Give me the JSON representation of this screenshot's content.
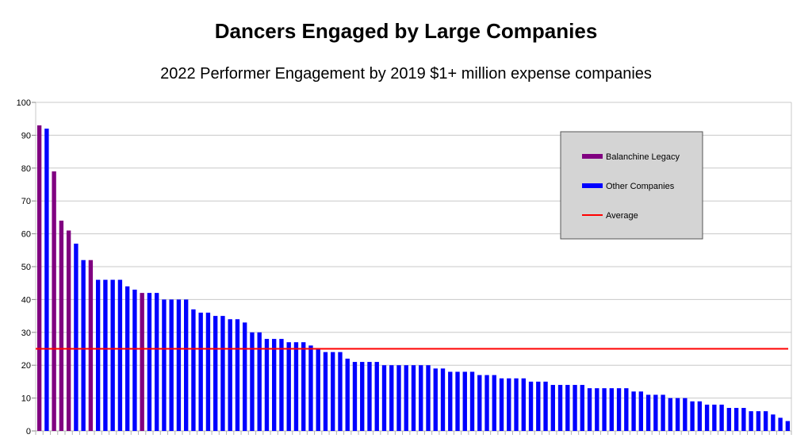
{
  "chart_data": {
    "type": "bar",
    "title": "Dancers Engaged by Large Companies",
    "subtitle": "2022 Performer Engagement by 2019 $1+ million expense companies",
    "xlabel": "",
    "ylabel": "",
    "ylim": [
      0,
      100
    ],
    "yticks": [
      0,
      10,
      20,
      30,
      40,
      50,
      60,
      70,
      80,
      90,
      100
    ],
    "grid": true,
    "legend_position": "top-right",
    "colors": {
      "balanchine": "#800080",
      "other": "#0000ff",
      "average": "#ff0000",
      "legend_bg": "#d4d4d4",
      "grid": "#c8c8c8"
    },
    "legend": [
      {
        "label": "Balanchine Legacy",
        "kind": "bar",
        "color": "#800080"
      },
      {
        "label": "Other Companies",
        "kind": "bar",
        "color": "#0000ff"
      },
      {
        "label": "Average",
        "kind": "line",
        "color": "#ff0000"
      }
    ],
    "average": 25,
    "series": [
      {
        "name": "Balanchine Legacy",
        "color": "#800080",
        "values": [
          93,
          null,
          79,
          64,
          61,
          null,
          null,
          52,
          null,
          null,
          null,
          null,
          null,
          null,
          42,
          null,
          null,
          null,
          null,
          null,
          null,
          null,
          null,
          null,
          null,
          null,
          null,
          null,
          null,
          null,
          null,
          null,
          null,
          null,
          null,
          null,
          null,
          null,
          null,
          null,
          null,
          null,
          null,
          null,
          null,
          null,
          null,
          null,
          null,
          null,
          null,
          null,
          null,
          null,
          null,
          null,
          null,
          null,
          null,
          null,
          null,
          null,
          null,
          null,
          null,
          null,
          null,
          null,
          null,
          null,
          null,
          null,
          null,
          null,
          null,
          null,
          null,
          null,
          null,
          null,
          null,
          null,
          null,
          null,
          null,
          null,
          null,
          null,
          null,
          null,
          null,
          null,
          null,
          null,
          null,
          null,
          null,
          null,
          null,
          null,
          null,
          null,
          null
        ]
      },
      {
        "name": "Other Companies",
        "color": "#0000ff",
        "values": [
          null,
          92,
          null,
          null,
          null,
          57,
          52,
          null,
          46,
          46,
          46,
          46,
          44,
          43,
          null,
          42,
          42,
          40,
          40,
          40,
          40,
          37,
          36,
          36,
          35,
          35,
          34,
          34,
          33,
          30,
          30,
          28,
          28,
          28,
          27,
          27,
          27,
          26,
          25,
          24,
          24,
          24,
          22,
          21,
          21,
          21,
          21,
          20,
          20,
          20,
          20,
          20,
          20,
          20,
          19,
          19,
          18,
          18,
          18,
          18,
          17,
          17,
          17,
          16,
          16,
          16,
          16,
          15,
          15,
          15,
          14,
          14,
          14,
          14,
          14,
          13,
          13,
          13,
          13,
          13,
          13,
          12,
          12,
          11,
          11,
          11,
          10,
          10,
          10,
          9,
          9,
          8,
          8,
          8,
          7,
          7,
          7,
          6,
          6,
          6,
          5,
          4,
          3
        ]
      }
    ]
  }
}
